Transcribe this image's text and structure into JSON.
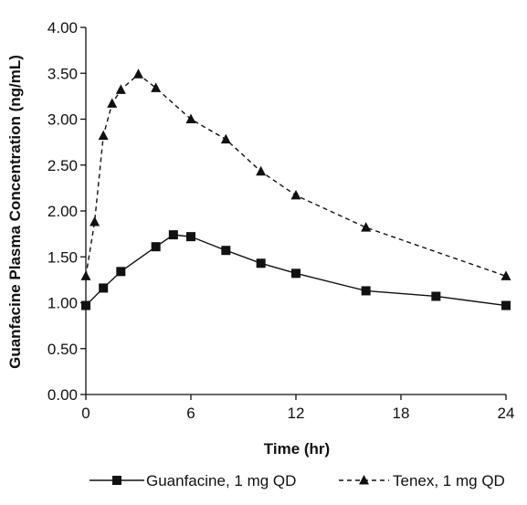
{
  "chart_data": {
    "type": "line",
    "title": "",
    "xlabel": "Time (hr)",
    "ylabel": "Guanfacine Plasma Concentration (ng/mL)",
    "xlim": [
      0,
      24
    ],
    "ylim": [
      0,
      4
    ],
    "x_ticks": [
      0,
      6,
      12,
      18,
      24
    ],
    "x_tick_labels": [
      "0",
      "6",
      "12",
      "18",
      "24"
    ],
    "y_ticks": [
      0,
      0.5,
      1,
      1.5,
      2,
      2.5,
      3,
      3.5,
      4
    ],
    "y_tick_labels": [
      "0.00",
      "0.50",
      "1.00",
      "1.50",
      "2.00",
      "2.50",
      "3.00",
      "3.50",
      "4.00"
    ],
    "grid": false,
    "legend_position": "bottom",
    "series": [
      {
        "name": "Guanfacine, 1 mg QD",
        "marker": "square",
        "line_style": "solid",
        "color": "#111111",
        "x": [
          0,
          1,
          2,
          4,
          5,
          6,
          8,
          10,
          12,
          16,
          20,
          24
        ],
        "y": [
          0.97,
          1.16,
          1.34,
          1.61,
          1.74,
          1.72,
          1.57,
          1.43,
          1.32,
          1.13,
          1.07,
          0.97
        ]
      },
      {
        "name": "Tenex, 1 mg QD",
        "marker": "triangle",
        "line_style": "dashed",
        "color": "#111111",
        "x": [
          0,
          0.5,
          1,
          1.5,
          2,
          3,
          4,
          6,
          8,
          10,
          12,
          16,
          24
        ],
        "y": [
          1.29,
          1.88,
          2.82,
          3.17,
          3.32,
          3.49,
          3.34,
          3.0,
          2.78,
          2.43,
          2.17,
          1.82,
          1.29
        ]
      }
    ]
  }
}
